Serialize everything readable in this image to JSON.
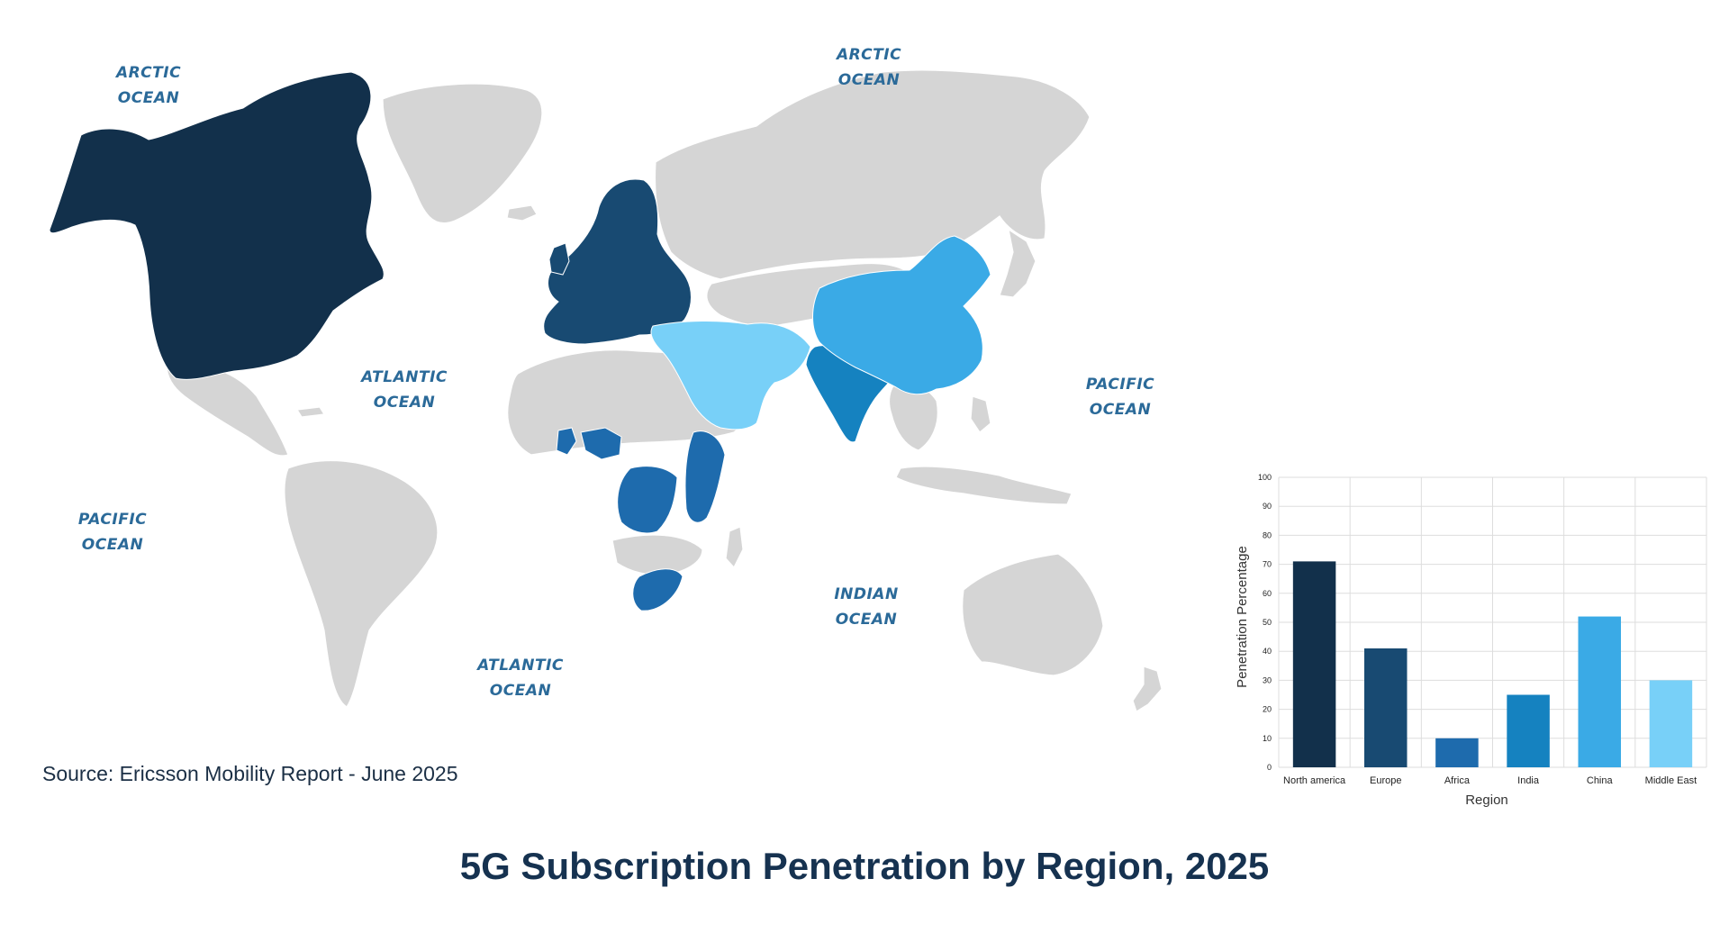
{
  "map": {
    "ocean_labels": [
      {
        "id": "arctic-west",
        "line1": "ARCTIC",
        "line2": "OCEAN"
      },
      {
        "id": "arctic-east",
        "line1": "ARCTIC",
        "line2": "OCEAN"
      },
      {
        "id": "atlantic-north",
        "line1": "ATLANTIC",
        "line2": "OCEAN"
      },
      {
        "id": "atlantic-south",
        "line1": "ATLANTIC",
        "line2": "OCEAN"
      },
      {
        "id": "pacific-east",
        "line1": "PACIFIC",
        "line2": "OCEAN"
      },
      {
        "id": "pacific-west",
        "line1": "PACIFIC",
        "line2": "OCEAN"
      },
      {
        "id": "indian",
        "line1": "INDIAN",
        "line2": "OCEAN"
      }
    ],
    "region_colors": {
      "North america": "#12304b",
      "Europe": "#184a72",
      "Africa": "#1e6bad",
      "India": "#1582c0",
      "China": "#3aaae6",
      "Middle East": "#78d0f8",
      "other": "#d5d5d5"
    }
  },
  "source": "Source: Ericsson Mobility Report - June 2025",
  "title": "5G Subscription Penetration by Region, 2025",
  "chart_data": {
    "type": "bar",
    "title": "5G Subscription Penetration by Region, 2025",
    "xlabel": "Region",
    "ylabel": "Penetration Percentage",
    "categories": [
      "North america",
      "Europe",
      "Africa",
      "India",
      "China",
      "Middle East"
    ],
    "values": [
      71,
      41,
      10,
      25,
      52,
      30
    ],
    "colors": [
      "#12304b",
      "#184a72",
      "#1e6bad",
      "#1582c0",
      "#3aaae6",
      "#78d0f8"
    ],
    "ylim": [
      0,
      100
    ],
    "yticks": [
      0,
      10,
      20,
      30,
      40,
      50,
      60,
      70,
      80,
      90,
      100
    ],
    "grid": true
  }
}
